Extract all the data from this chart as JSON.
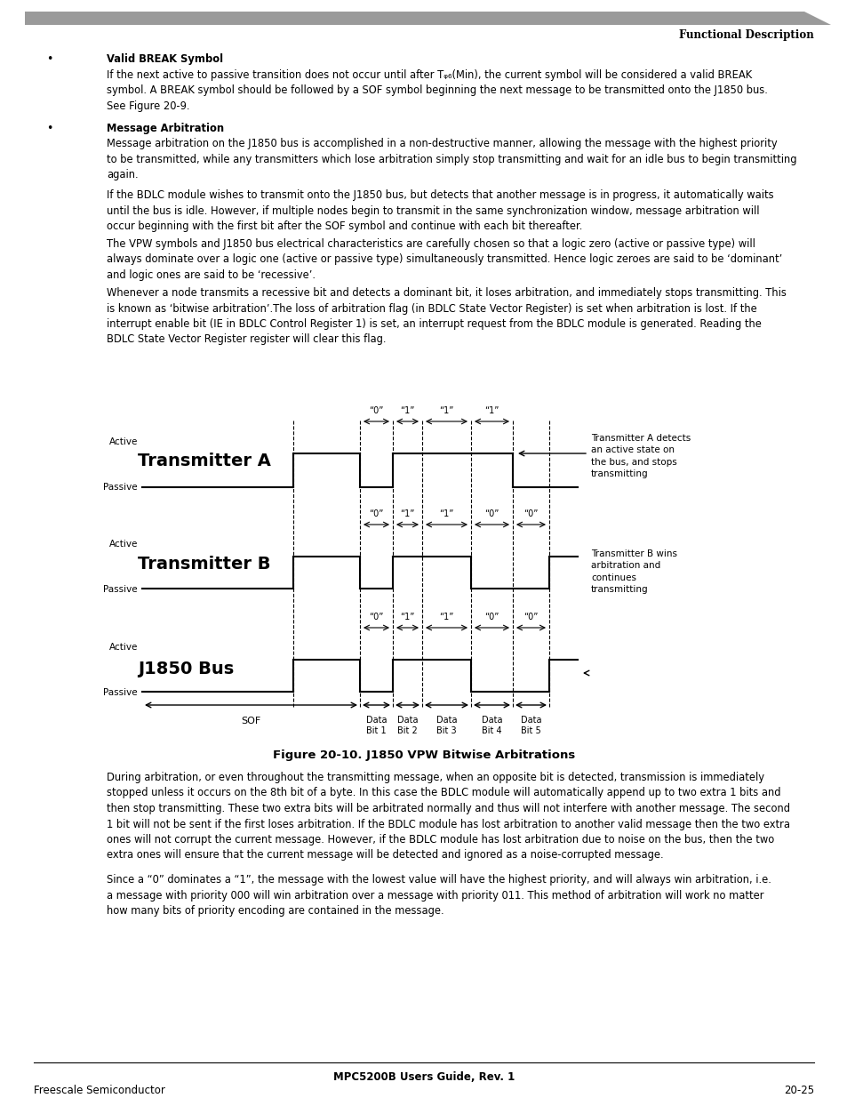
{
  "page_background": "#ffffff",
  "header_bar_color": "#9a9a9a",
  "header_text": "Functional Description",
  "footer_center": "MPC5200B Users Guide, Rev. 1",
  "footer_left": "Freescale Semiconductor",
  "footer_right": "20-25",
  "figure_caption": "Figure 20-10. J1850 VPW Bitwise Arbitrations",
  "ann_A": "Transmitter A detects\nan active state on\nthe bus, and stops\ntransmitting",
  "ann_B": "Transmitter B wins\narbitration and\ncontinues\ntransmitting",
  "body_font": 8.5,
  "small_font": 8.0,
  "diagram_label_font": 8.0,
  "signal_name_font": 14,
  "active_passive_font": 7.5
}
